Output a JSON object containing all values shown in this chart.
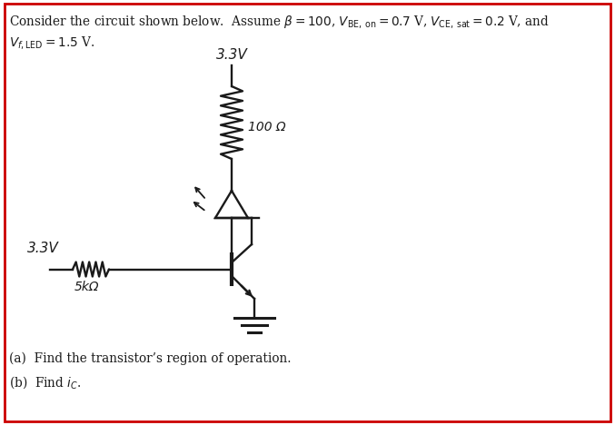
{
  "background_color": "#ffffff",
  "border_color": "#cc0000",
  "border_linewidth": 2,
  "fig_width": 6.77,
  "fig_height": 4.68,
  "dpi": 100,
  "header_line1": "Consider the circuit shown below.  Assume $\\beta = 100$, $V_{\\mathrm{BE,\\,on}} = 0.7$ V, $V_{\\mathrm{CE,\\,sat}} = 0.2$ V, and",
  "header_line2": "$V_{f\\mathrm{,LED}} = 1.5$ V.",
  "question_a": "(a)  Find the transistor’s region of operation.",
  "question_b": "(b)  Find $i_C$.",
  "v_top_label": "3.3V",
  "r_label": "100 Ω",
  "v_base_label": "3.3V",
  "rb_label": "5kΩ",
  "colors": {
    "lines": "#1a1a1a",
    "text": "#1a1a1a",
    "header": "#1a1a1a"
  }
}
